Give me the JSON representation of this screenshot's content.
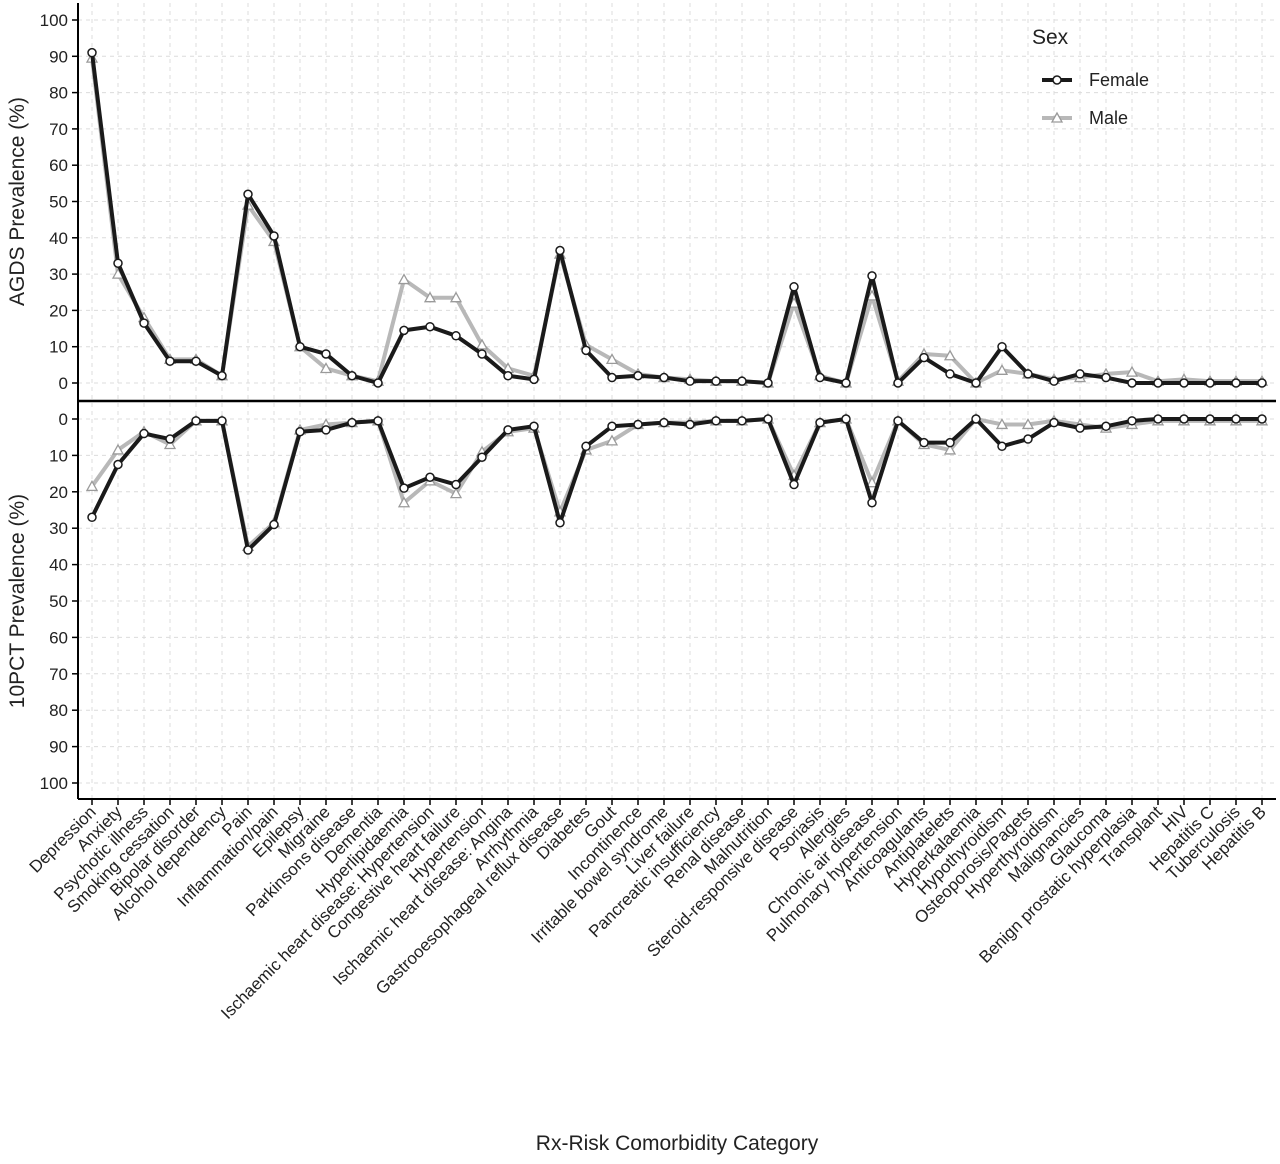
{
  "chart_data": [
    {
      "type": "line",
      "panel": "top",
      "ylabel": "AGDS Prevalence (%)",
      "xlabel": "Rx-Risk Comorbidity Category",
      "ylim": [
        0,
        100
      ],
      "yticks": [
        0,
        10,
        20,
        30,
        40,
        50,
        60,
        70,
        80,
        90,
        100
      ],
      "grid": true,
      "legend": {
        "title": "Sex",
        "position": "top-right"
      },
      "categories": [
        "Depression",
        "Anxiety",
        "Psychotic illness",
        "Smoking cessation",
        "Bipolar disorder",
        "Alcohol dependency",
        "Pain",
        "Inflammation/pain",
        "Epilepsy",
        "Migraine",
        "Parkinsons disease",
        "Dementia",
        "Hyperlipidaemia",
        "Ischaemic heart disease: Hypertension",
        "Congestive heart failure",
        "Hypertension",
        "Ischaemic heart disease: Angina",
        "Arrhythmia",
        "Gastrooesophageal reflux disease",
        "Diabetes",
        "Gout",
        "Incontinence",
        "Irritable bowel syndrome",
        "Liver failure",
        "Pancreatic insufficiency",
        "Renal disease",
        "Malnutrition",
        "Steroid-responsive disease",
        "Psoriasis",
        "Allergies",
        "Chronic air disease",
        "Pulmonary hypertension",
        "Anticoagulants",
        "Antiplatelets",
        "Hyperkalaemia",
        "Hypothyroidism",
        "Osteoporosis/Pagets",
        "Hyperthyroidism",
        "Malignancies",
        "Glaucoma",
        "Benign prostatic hyperplasia",
        "Transplant",
        "HIV",
        "Hepatitis C",
        "Tuberculosis",
        "Hepatitis B"
      ],
      "series": [
        {
          "name": "Female",
          "color": "#1a1a1a",
          "marker": "circle",
          "values": [
            91,
            33,
            16.5,
            6,
            6,
            2,
            52,
            40.5,
            10,
            8,
            2,
            0,
            14.5,
            15.5,
            13,
            8,
            2,
            1,
            36.5,
            9,
            1.5,
            2,
            1.5,
            0.5,
            0.5,
            0.5,
            0,
            26.5,
            1.5,
            0,
            29.5,
            0,
            7,
            2.5,
            0,
            10,
            2.5,
            0.5,
            2.5,
            1.5,
            0,
            0,
            0,
            0,
            0,
            0
          ]
        },
        {
          "name": "Male",
          "color": "#b8b8b8",
          "marker": "triangle",
          "values": [
            89.5,
            30,
            18,
            6.5,
            6.5,
            2,
            49,
            39,
            10,
            4,
            2,
            0.5,
            28.5,
            23.5,
            23.5,
            10.5,
            4,
            2,
            35.5,
            10.5,
            6.5,
            2.5,
            1.5,
            1,
            0.5,
            0.5,
            0,
            22,
            2,
            0,
            24,
            0.5,
            8,
            7.5,
            0,
            3.5,
            2.5,
            1,
            1.5,
            2.5,
            3,
            0.5,
            1,
            0.5,
            0.5,
            0.5
          ]
        }
      ]
    },
    {
      "type": "line",
      "panel": "bottom",
      "ylabel": "10PCT Prevalence (%)",
      "xlabel": "Rx-Risk Comorbidity Category",
      "ylim": [
        0,
        100
      ],
      "y_reversed": true,
      "yticks": [
        0,
        10,
        20,
        30,
        40,
        50,
        60,
        70,
        80,
        90,
        100
      ],
      "grid": true,
      "categories": "same as top panel",
      "series": [
        {
          "name": "Female",
          "color": "#1a1a1a",
          "marker": "circle",
          "values": [
            27,
            12.5,
            4,
            5.5,
            0.5,
            0.5,
            36,
            29,
            3.5,
            3,
            1,
            0.5,
            19,
            16,
            18,
            10.5,
            3,
            2,
            28.5,
            7.5,
            2,
            1.5,
            1,
            1.5,
            0.5,
            0.5,
            0,
            18,
            1,
            0,
            23,
            0.5,
            6.5,
            6.5,
            0,
            7.5,
            5.5,
            1,
            2.5,
            2,
            0.5,
            0,
            0,
            0,
            0,
            0
          ]
        },
        {
          "name": "Male",
          "color": "#b8b8b8",
          "marker": "triangle",
          "values": [
            18.5,
            8.5,
            3.5,
            7,
            0.5,
            0.5,
            35,
            28.5,
            3,
            1.5,
            1,
            0.5,
            23,
            17,
            20.5,
            9,
            3.5,
            2.5,
            25.5,
            8.5,
            6,
            1.5,
            1,
            1,
            0.5,
            0.5,
            0,
            15.5,
            1,
            0,
            17.5,
            0.5,
            7,
            8.5,
            0,
            1.5,
            1.5,
            0.5,
            1.5,
            2.5,
            1.5,
            0.5,
            0.5,
            0.5,
            0.5,
            0.5
          ]
        }
      ]
    }
  ]
}
